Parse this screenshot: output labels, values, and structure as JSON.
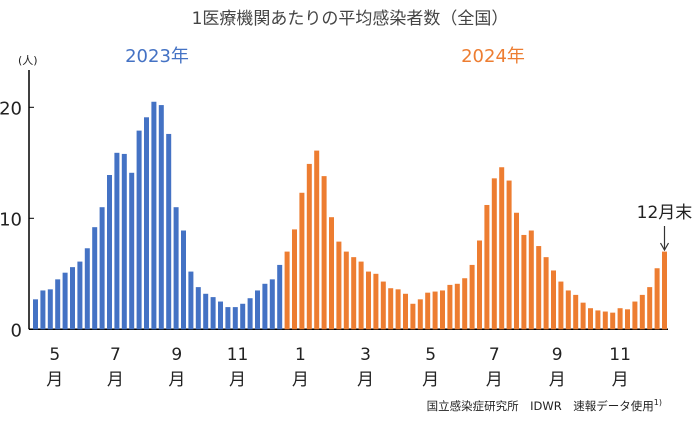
{
  "title": "1医療機関あたりの平均感染者数（全国）",
  "footer": {
    "text": "国立感染症研究所　IDWR　速報データ使用",
    "superscript": "1)"
  },
  "chart_data": {
    "type": "bar",
    "title": "1医療機関あたりの平均感染者数（全国）",
    "ylabel": "(人)",
    "ylim": [
      0,
      22
    ],
    "yticks": [
      0,
      10,
      20
    ],
    "grid": false,
    "colors": {
      "2023": "#4472C4",
      "2024": "#ED7D31"
    },
    "series": [
      {
        "name": "2023年",
        "color": "#4472C4",
        "values": [
          2.7,
          3.5,
          3.6,
          4.5,
          5.1,
          5.6,
          6.1,
          7.3,
          9.2,
          11.0,
          13.9,
          15.9,
          15.8,
          14.1,
          17.9,
          19.1,
          20.5,
          20.2,
          17.6,
          11.0,
          8.9,
          5.2,
          3.8,
          3.2,
          2.9,
          2.5,
          2.0,
          2.0,
          2.3,
          2.8,
          3.5,
          4.1,
          4.5,
          5.8
        ]
      },
      {
        "name": "2024年",
        "color": "#ED7D31",
        "values": [
          7.0,
          9.0,
          12.3,
          14.9,
          16.1,
          13.8,
          10.1,
          7.9,
          7.0,
          6.5,
          6.1,
          5.2,
          5.0,
          4.3,
          3.7,
          3.6,
          3.2,
          2.3,
          2.7,
          3.3,
          3.4,
          3.5,
          4.0,
          4.1,
          4.6,
          5.8,
          8.0,
          11.2,
          13.6,
          14.6,
          13.4,
          10.5,
          8.5,
          8.9,
          7.5,
          6.5,
          5.3,
          4.3,
          3.5,
          3.1,
          2.4,
          1.9,
          1.7,
          1.6,
          1.5,
          1.9,
          1.8,
          2.5,
          3.1,
          3.8,
          5.5,
          7.0
        ]
      }
    ],
    "xticks": [
      {
        "label": "5",
        "unit": "月",
        "week_index": 2.6
      },
      {
        "label": "7",
        "unit": "月",
        "week_index": 10.8
      },
      {
        "label": "9",
        "unit": "月",
        "week_index": 19.1
      },
      {
        "label": "11",
        "unit": "月",
        "week_index": 27.3
      },
      {
        "label": "1",
        "unit": "月",
        "week_index": 35.8
      },
      {
        "label": "3",
        "unit": "月",
        "week_index": 44.6
      },
      {
        "label": "5",
        "unit": "月",
        "week_index": 53.4
      },
      {
        "label": "7",
        "unit": "月",
        "week_index": 62
      },
      {
        "label": "9",
        "unit": "月",
        "week_index": 70.5
      },
      {
        "label": "11",
        "unit": "月",
        "week_index": 79
      }
    ],
    "annotation": {
      "text": "12月末",
      "week_index": 85
    }
  }
}
